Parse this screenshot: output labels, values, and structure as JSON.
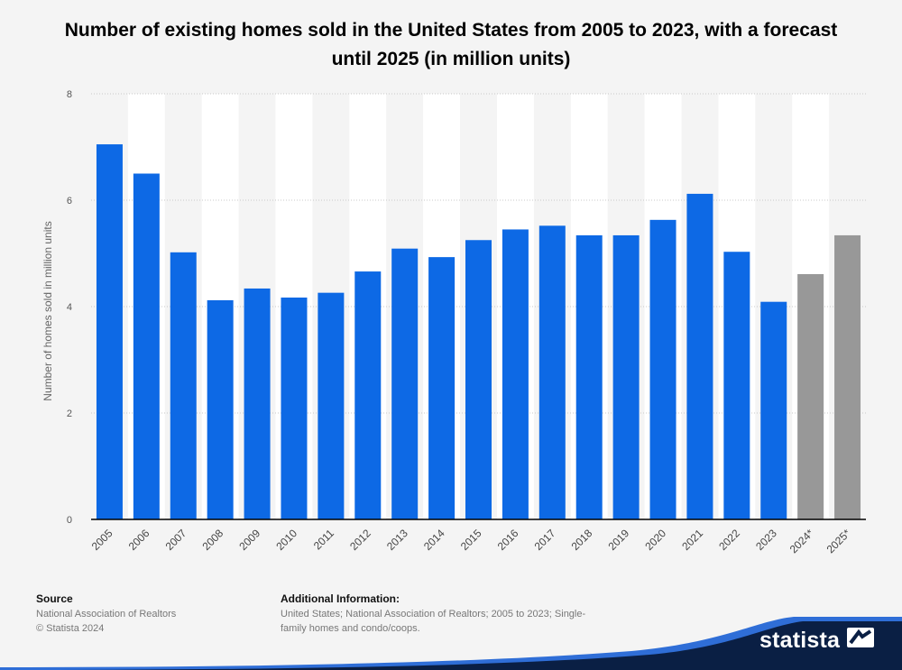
{
  "chart_data": {
    "type": "bar",
    "title": "Number of existing homes sold in the United States from 2005 to 2023, with a forecast until 2025 (in million units)",
    "ylabel": "Number of homes sold in million units",
    "xlabel": "",
    "ylim": [
      0,
      8
    ],
    "yticks": [
      0,
      2,
      4,
      6,
      8
    ],
    "categories": [
      "2005",
      "2006",
      "2007",
      "2008",
      "2009",
      "2010",
      "2011",
      "2012",
      "2013",
      "2014",
      "2015",
      "2016",
      "2017",
      "2018",
      "2019",
      "2020",
      "2021",
      "2022",
      "2023",
      "2024*",
      "2025*"
    ],
    "values": [
      7.05,
      6.5,
      5.02,
      4.12,
      4.34,
      4.17,
      4.26,
      4.66,
      5.09,
      4.93,
      5.25,
      5.45,
      5.52,
      5.34,
      5.34,
      5.63,
      6.12,
      5.03,
      4.09,
      4.61,
      5.34
    ],
    "forecast": [
      false,
      false,
      false,
      false,
      false,
      false,
      false,
      false,
      false,
      false,
      false,
      false,
      false,
      false,
      false,
      false,
      false,
      false,
      false,
      true,
      true
    ],
    "colors": {
      "actual": "#0d69e5",
      "forecast": "#989898",
      "stripe": "#ffffff",
      "grid": "#c8c8c8",
      "axis": "#000000"
    }
  },
  "footer": {
    "source_label": "Source",
    "source_lines": [
      "National Association of Realtors",
      "© Statista 2024"
    ],
    "info_label": "Additional Information:",
    "info_lines": [
      "United States; National Association of Realtors; 2005 to 2023; Single-",
      "family homes and condo/coops."
    ]
  },
  "brand": {
    "name": "statista",
    "icon": "statista-logo-icon",
    "color": "#0a1f44"
  }
}
